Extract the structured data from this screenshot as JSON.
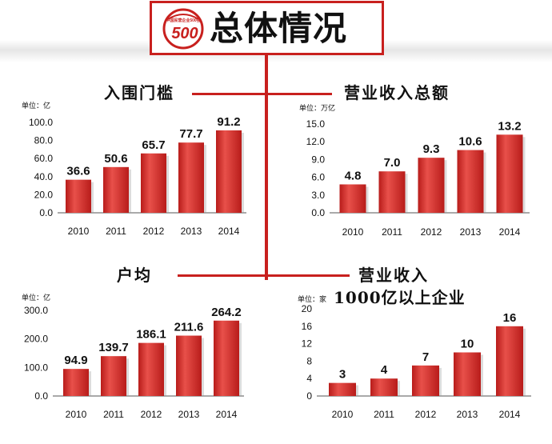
{
  "header": {
    "title": "总体情况",
    "logo_text": "中国民营企业500强",
    "logo_number": "500"
  },
  "colors": {
    "accent": "#c8201e",
    "bar_top": "#e8504a",
    "bar_bottom": "#b81c1a"
  },
  "chart_data": [
    {
      "type": "bar",
      "title": "入围门槛",
      "unit": "单位：亿",
      "categories": [
        "2010",
        "2011",
        "2012",
        "2013",
        "2014"
      ],
      "values": [
        36.6,
        50.6,
        65.7,
        77.7,
        91.2
      ],
      "labels": [
        "36.6",
        "50.6",
        "65.7",
        "77.7",
        "91.2"
      ],
      "yticks": [
        "0.0",
        "20.0",
        "40.0",
        "60.0",
        "80.0",
        "100.0"
      ],
      "ylim": [
        0,
        100
      ]
    },
    {
      "type": "bar",
      "title": "营业收入总额",
      "unit": "单位：万亿",
      "categories": [
        "2010",
        "2011",
        "2012",
        "2013",
        "2014"
      ],
      "values": [
        4.8,
        7.0,
        9.3,
        10.6,
        13.2
      ],
      "labels": [
        "4.8",
        "7.0",
        "9.3",
        "10.6",
        "13.2"
      ],
      "yticks": [
        "0.0",
        "3.0",
        "6.0",
        "9.0",
        "12.0",
        "15.0"
      ],
      "ylim": [
        0,
        15
      ]
    },
    {
      "type": "bar",
      "title": "户均",
      "unit": "单位：亿",
      "categories": [
        "2010",
        "2011",
        "2012",
        "2013",
        "2014"
      ],
      "values": [
        94.9,
        139.7,
        186.1,
        211.6,
        264.2
      ],
      "labels": [
        "94.9",
        "139.7",
        "186.1",
        "211.6",
        "264.2"
      ],
      "yticks": [
        "0.0",
        "100.0",
        "200.0",
        "300.0"
      ],
      "ylim": [
        0,
        300
      ]
    },
    {
      "type": "bar",
      "title": "营业收入",
      "subtitle": "1000亿以上企业",
      "unit": "单位：家",
      "categories": [
        "2010",
        "2011",
        "2012",
        "2013",
        "2014"
      ],
      "values": [
        3,
        4,
        7,
        10,
        16
      ],
      "labels": [
        "3",
        "4",
        "7",
        "10",
        "16"
      ],
      "yticks": [
        "0",
        "4",
        "8",
        "12",
        "16",
        "20"
      ],
      "ylim": [
        0,
        20
      ]
    }
  ]
}
